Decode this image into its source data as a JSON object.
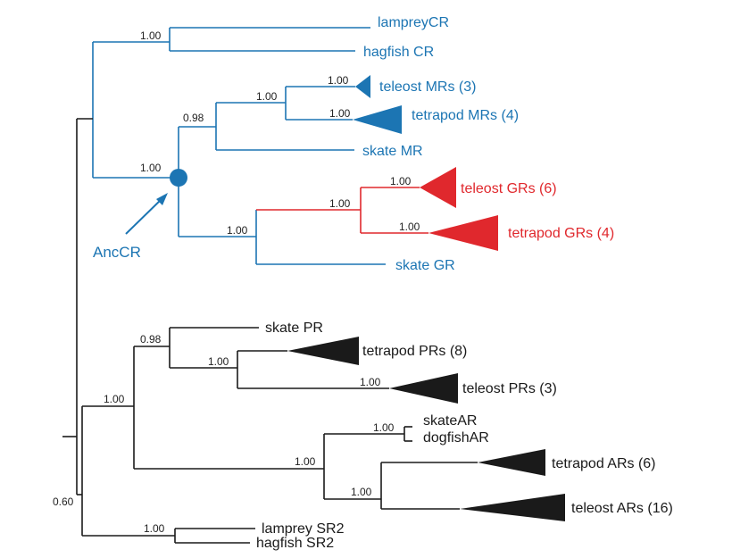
{
  "colors": {
    "blue": "#1c75b3",
    "red": "#e0282d",
    "black": "#1a1a1a"
  },
  "taxa": {
    "lamprey_cr": "lampreyCR",
    "hagfish_cr": "hagfish CR",
    "teleost_mrs": "teleost MRs (3)",
    "tetrapod_mrs": "tetrapod MRs (4)",
    "skate_mr": "skate MR",
    "teleost_grs": "teleost GRs (6)",
    "tetrapod_grs": "tetrapod GRs (4)",
    "skate_gr": "skate GR",
    "skate_pr": "skate PR",
    "tetrapod_prs": "tetrapod PRs (8)",
    "teleost_prs": "teleost PRs (3)",
    "skate_ar": "skateAR",
    "dogfish_ar": "dogfishAR",
    "tetrapod_ars": "tetrapod ARs (6)",
    "teleost_ars": "teleost ARs (16)",
    "lamprey_sr2": "lamprey SR2",
    "hagfish_sr2": "hagfish SR2"
  },
  "support": {
    "cr_agnathan": "1.00",
    "mr_clade": "1.00",
    "mr_teleost": "1.00",
    "mr_tetrapod": "1.00",
    "mr_skate": "0.98",
    "anccr": "1.00",
    "gr_clade": "1.00",
    "gr_teleost": "1.00",
    "gr_tetrapod": "1.00",
    "gr_skate": "1.00",
    "pr_skate": "0.98",
    "pr_clade": "1.00",
    "pr_ar": "1.00",
    "ar_chondrichthyan": "1.00",
    "ar_clade": "1.00",
    "ar_osteichthyan": "1.00",
    "sr2": "1.00",
    "root": "0.60"
  },
  "annotation": {
    "ancestral_node": "AncCR"
  }
}
